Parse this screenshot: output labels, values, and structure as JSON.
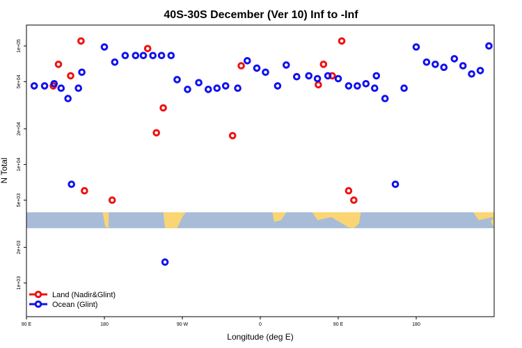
{
  "chart_data": {
    "type": "scatter",
    "title": "40S-30S December (Ver 10)   Inf to -Inf",
    "xlabel": "Longitude (deg E)",
    "ylabel": "N Total",
    "y_scale": "log",
    "xlim": [
      -90,
      180
    ],
    "ylim": [
      520,
      150000
    ],
    "x_ticks": [
      {
        "value": -90,
        "label": "90 E"
      },
      {
        "value": -45,
        "label": "180"
      },
      {
        "value": 0,
        "label": "90 W"
      },
      {
        "value": 45,
        "label": "0"
      },
      {
        "value": 90,
        "label": "90 E"
      },
      {
        "value": 135,
        "label": "180"
      }
    ],
    "y_ticks": [
      {
        "value": 1000,
        "label": "1e+03"
      },
      {
        "value": 2000,
        "label": "2e+03"
      },
      {
        "value": 5000,
        "label": "5e+03"
      },
      {
        "value": 10000,
        "label": "1e+04"
      },
      {
        "value": 20000,
        "label": "2e+04"
      },
      {
        "value": 50000,
        "label": "5e+04"
      },
      {
        "value": 100000,
        "label": "1e+05"
      }
    ],
    "map_strip": {
      "y_from": 2900,
      "y_to": 3950,
      "ocean_color": "#a8bcd8",
      "land_color": "#fad574"
    },
    "legend_position": "bottom-left",
    "series": [
      {
        "name": "Land (Nadir&Glint)",
        "color": "#ee1111",
        "x": [
          -74.5,
          -71.5,
          -64.5,
          -58.5,
          -56.5,
          -40.5,
          -20,
          -15,
          -11,
          29,
          34,
          78.5,
          81.5,
          86.5,
          92,
          96,
          99
        ],
        "y": [
          46000,
          70000,
          56000,
          110000,
          6000,
          5000,
          95000,
          18500,
          30000,
          17500,
          68000,
          47000,
          70000,
          56000,
          110000,
          6000,
          5000
        ]
      },
      {
        "name": "Ocean (Glint)",
        "color": "#1111ee",
        "x": [
          -85.5,
          -79.5,
          -74,
          -70,
          -66,
          -64,
          -60,
          -45,
          -39,
          -33,
          -27,
          -22.5,
          -17,
          -12,
          -6.5,
          -3,
          3,
          9.5,
          15,
          20,
          25,
          32,
          37.5,
          43,
          48,
          55,
          60,
          66,
          73,
          78,
          84,
          90,
          96,
          101,
          106,
          111,
          117,
          123,
          128,
          135,
          141,
          146,
          151,
          157,
          162,
          167,
          172,
          177,
          -10,
          -58,
          112
        ],
        "y": [
          46000,
          46000,
          48000,
          44000,
          36000,
          6800,
          44000,
          98000,
          73000,
          83000,
          83000,
          83000,
          83000,
          83000,
          83000,
          52000,
          43000,
          49000,
          43000,
          44000,
          46000,
          44000,
          75000,
          65000,
          60000,
          46000,
          69000,
          55000,
          56000,
          53000,
          56000,
          53000,
          46000,
          46000,
          48000,
          44000,
          36000,
          6800,
          44000,
          98000,
          73000,
          70000,
          66000,
          78000,
          68000,
          58000,
          62000,
          100000,
          1500,
          60000,
          56000
        ]
      }
    ]
  }
}
